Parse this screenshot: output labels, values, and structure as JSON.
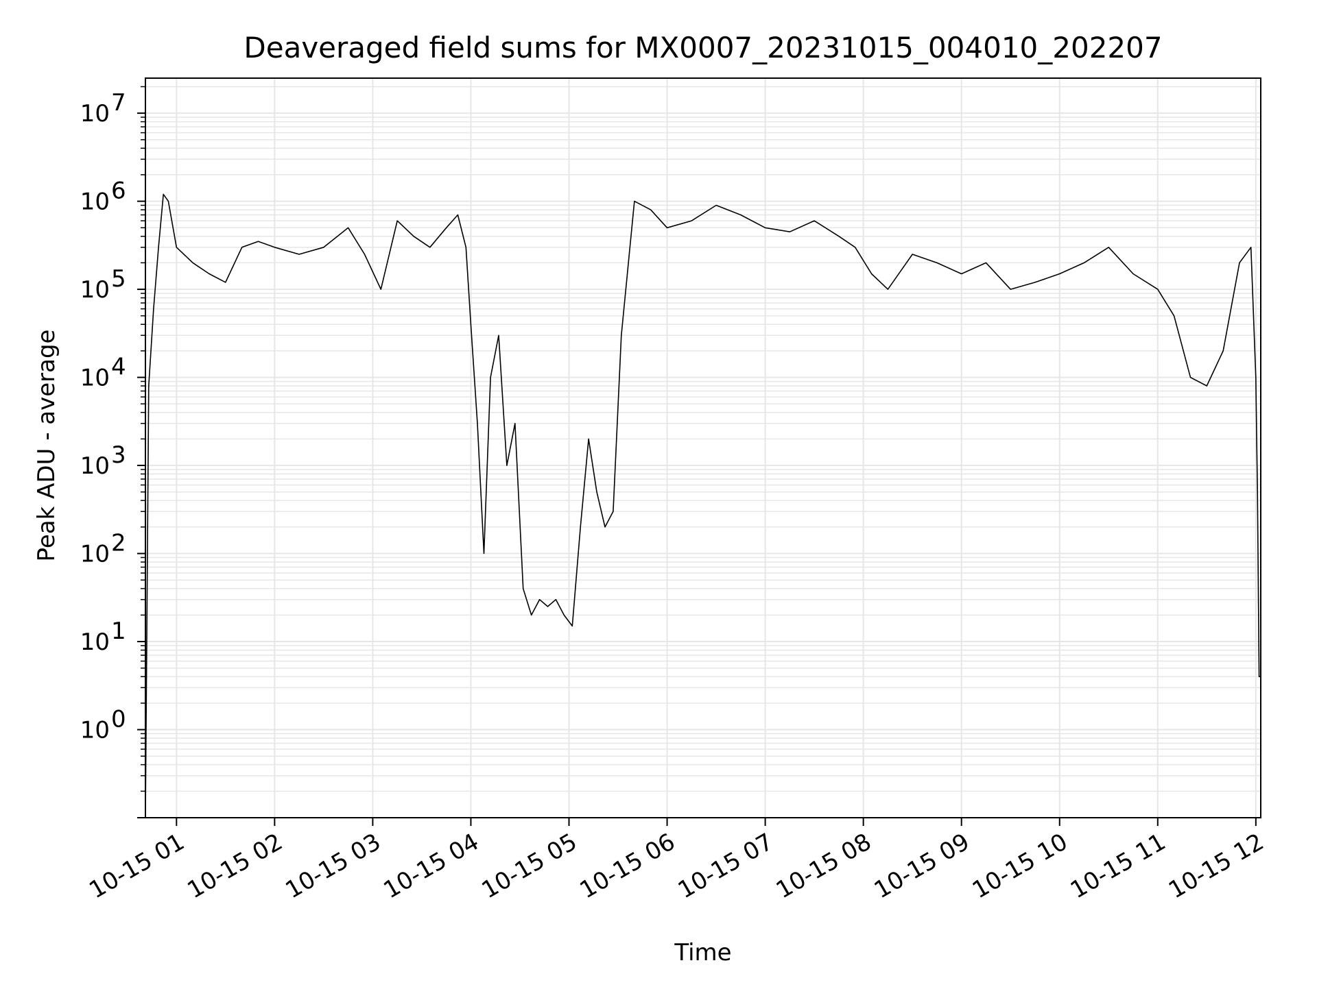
{
  "chart_data": {
    "type": "line",
    "title": "Deaveraged field sums for MX0007_20231015_004010_202207",
    "xlabel": "Time",
    "ylabel": "Peak ADU - average",
    "yscale": "log",
    "ylim": [
      0.1,
      25000000
    ],
    "xlim": [
      "10-15 00:41",
      "10-15 12:03"
    ],
    "grid": true,
    "x_tick_labels": [
      "10-15 01",
      "10-15 02",
      "10-15 03",
      "10-15 04",
      "10-15 05",
      "10-15 06",
      "10-15 07",
      "10-15 08",
      "10-15 09",
      "10-15 10",
      "10-15 11",
      "10-15 12"
    ],
    "x_tick_values": [
      "10-15 01:00",
      "10-15 02:00",
      "10-15 03:00",
      "10-15 04:00",
      "10-15 05:00",
      "10-15 06:00",
      "10-15 07:00",
      "10-15 08:00",
      "10-15 09:00",
      "10-15 10:00",
      "10-15 11:00",
      "10-15 12:00"
    ],
    "y_tick_labels": [
      {
        "value": 1,
        "base": "10",
        "exp": "0"
      },
      {
        "value": 10,
        "base": "10",
        "exp": "1"
      },
      {
        "value": 100,
        "base": "10",
        "exp": "2"
      },
      {
        "value": 1000,
        "base": "10",
        "exp": "3"
      },
      {
        "value": 10000,
        "base": "10",
        "exp": "4"
      },
      {
        "value": 100000,
        "base": "10",
        "exp": "5"
      },
      {
        "value": 1000000,
        "base": "10",
        "exp": "6"
      },
      {
        "value": 10000000,
        "base": "10",
        "exp": "7"
      }
    ],
    "series": [
      {
        "color": "#000000",
        "x": [
          "10-15 00:41",
          "10-15 00:43",
          "10-15 00:46",
          "10-15 00:49",
          "10-15 00:52",
          "10-15 00:55",
          "10-15 01:00",
          "10-15 01:10",
          "10-15 01:20",
          "10-15 01:30",
          "10-15 01:40",
          "10-15 01:50",
          "10-15 02:00",
          "10-15 02:15",
          "10-15 02:30",
          "10-15 02:45",
          "10-15 02:55",
          "10-15 03:05",
          "10-15 03:15",
          "10-15 03:25",
          "10-15 03:35",
          "10-15 03:45",
          "10-15 03:52",
          "10-15 03:57",
          "10-15 04:00",
          "10-15 04:04",
          "10-15 04:08",
          "10-15 04:12",
          "10-15 04:17",
          "10-15 04:22",
          "10-15 04:27",
          "10-15 04:32",
          "10-15 04:37",
          "10-15 04:42",
          "10-15 04:47",
          "10-15 04:52",
          "10-15 04:57",
          "10-15 05:02",
          "10-15 05:07",
          "10-15 05:12",
          "10-15 05:17",
          "10-15 05:22",
          "10-15 05:27",
          "10-15 05:32",
          "10-15 05:40",
          "10-15 05:50",
          "10-15 06:00",
          "10-15 06:15",
          "10-15 06:30",
          "10-15 06:45",
          "10-15 07:00",
          "10-15 07:15",
          "10-15 07:30",
          "10-15 07:45",
          "10-15 07:55",
          "10-15 08:05",
          "10-15 08:15",
          "10-15 08:30",
          "10-15 08:45",
          "10-15 09:00",
          "10-15 09:15",
          "10-15 09:30",
          "10-15 09:45",
          "10-15 10:00",
          "10-15 10:15",
          "10-15 10:30",
          "10-15 10:45",
          "10-15 11:00",
          "10-15 11:10",
          "10-15 11:20",
          "10-15 11:30",
          "10-15 11:40",
          "10-15 11:50",
          "10-15 11:57",
          "10-15 12:00",
          "10-15 12:01",
          "10-15 12:02",
          "10-15 12:03"
        ],
        "y": [
          0.1,
          8000,
          60000,
          300000,
          1200000,
          1000000,
          300000,
          200000,
          150000,
          120000,
          300000,
          350000,
          300000,
          250000,
          300000,
          500000,
          250000,
          100000,
          600000,
          400000,
          300000,
          500000,
          700000,
          300000,
          40000,
          3000,
          100,
          10000,
          30000,
          1000,
          3000,
          40,
          20,
          30,
          25,
          30,
          20,
          15,
          200,
          2000,
          500,
          200,
          300,
          30000,
          1000000,
          800000,
          500000,
          600000,
          900000,
          700000,
          500000,
          450000,
          600000,
          400000,
          300000,
          150000,
          100000,
          250000,
          200000,
          150000,
          200000,
          100000,
          120000,
          150000,
          200000,
          300000,
          150000,
          100000,
          50000,
          10000,
          8000,
          20000,
          200000,
          300000,
          10000,
          500,
          4,
          4
        ]
      }
    ]
  }
}
